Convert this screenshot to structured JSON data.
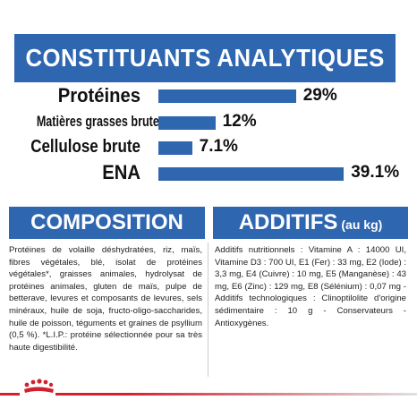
{
  "header": {
    "title": "CONSTITUANTS ANALYTIQUES"
  },
  "nutrients": [
    {
      "name": "Protéines",
      "value_label": "29%",
      "percent": 29
    },
    {
      "name": "Matières grasses brutes",
      "value_label": "12%",
      "percent": 12
    },
    {
      "name": "Cellulose brute",
      "value_label": "7.1%",
      "percent": 7.1
    },
    {
      "name": "ENA",
      "value_label": "39.1%",
      "percent": 39.1
    }
  ],
  "composition": {
    "title": "COMPOSITION",
    "text": "Protéines de volaille déshydratées, riz, maïs, fibres végétales, blé, isolat de protéines végétales*, graisses animales, hydrolysat de protéines animales, gluten de maïs, pulpe de betterave, levures et composants de levures, sels minéraux, huile de soja, fructo-oligo-saccharides, huile de poisson, téguments et graines de psyllium (0,5 %). *L.I.P.: protéine sélectionnée pour sa très haute digestibilité."
  },
  "additifs": {
    "title": "ADDITIFS",
    "unit": "(au kg)",
    "text": "Additifs nutritionnels : Vitamine A : 14000 UI, Vitamine D3 : 700 UI, E1 (Fer) : 33 mg, E2 (Iode) : 3,3 mg, E4 (Cuivre) : 10 mg, E5 (Manganèse) : 43 mg, E6 (Zinc) : 129 mg, E8 (Sélénium) : 0,07 mg - Additifs technologiques : Clinoptilolite d'origine sédimentaire : 10 g - Conservateurs - Antioxygènes."
  },
  "colors": {
    "accent": "#2f66b0",
    "brand_red": "#d3202f"
  },
  "logo": {
    "icon": "crown-icon"
  }
}
